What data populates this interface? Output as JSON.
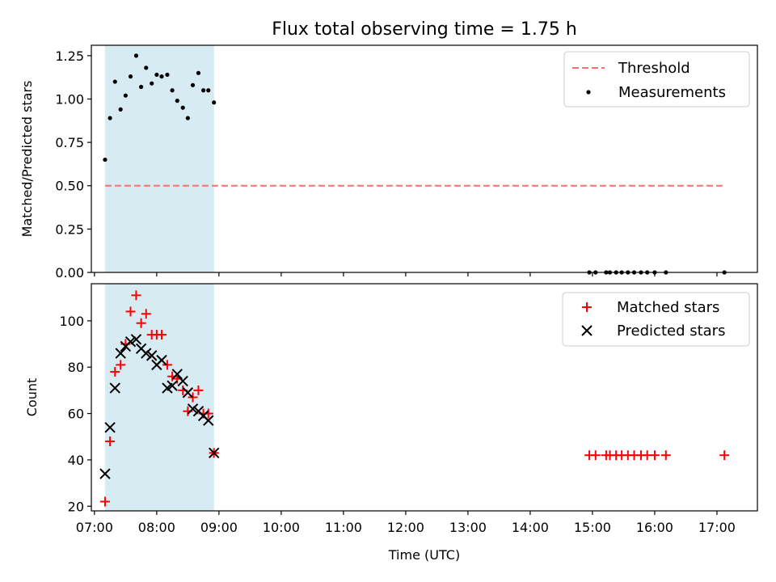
{
  "chart_data": {
    "type": "scatter",
    "title": "Flux total observing time = 1.75 h",
    "xlabel": "Time (UTC)",
    "x_ticks": [
      "07:00",
      "08:00",
      "09:00",
      "10:00",
      "11:00",
      "12:00",
      "13:00",
      "14:00",
      "15:00",
      "16:00",
      "17:00"
    ],
    "xlim_hours": [
      6.95,
      17.65
    ],
    "shaded_span_hours": [
      7.17,
      8.92
    ],
    "shade_color": "#add8e6",
    "top": {
      "ylabel": "Matched/Predicted stars",
      "ylim": [
        0,
        1.31
      ],
      "y_ticks": [
        "0.00",
        "0.25",
        "0.50",
        "0.75",
        "1.00",
        "1.25"
      ],
      "threshold": {
        "name": "Threshold",
        "value": 0.5,
        "x_range_hours": [
          7.17,
          17.12
        ],
        "color": "#ff7070"
      },
      "measurements": {
        "name": "Measurements",
        "color": "#000000",
        "x": [
          7.17,
          7.25,
          7.33,
          7.42,
          7.5,
          7.58,
          7.67,
          7.75,
          7.83,
          7.92,
          8.0,
          8.08,
          8.17,
          8.25,
          8.33,
          8.42,
          8.5,
          8.58,
          8.67,
          8.75,
          8.83,
          8.92,
          14.95,
          15.05,
          15.22,
          15.28,
          15.38,
          15.47,
          15.57,
          15.67,
          15.78,
          15.88,
          16.0,
          16.18,
          17.12
        ],
        "y": [
          0.65,
          0.89,
          1.1,
          0.94,
          1.02,
          1.13,
          1.25,
          1.07,
          1.18,
          1.09,
          1.14,
          1.13,
          1.14,
          1.05,
          0.99,
          0.95,
          0.89,
          1.08,
          1.15,
          1.05,
          1.05,
          0.98,
          0,
          0,
          0,
          0,
          0,
          0,
          0,
          0,
          0,
          0,
          0,
          0,
          0
        ]
      }
    },
    "bottom": {
      "ylabel": "Count",
      "ylim": [
        18,
        116
      ],
      "y_ticks": [
        "20",
        "40",
        "60",
        "80",
        "100"
      ],
      "matched": {
        "name": "Matched stars",
        "color": "#ff0000",
        "x": [
          7.17,
          7.25,
          7.33,
          7.42,
          7.5,
          7.58,
          7.67,
          7.75,
          7.83,
          7.92,
          8.0,
          8.08,
          8.17,
          8.25,
          8.33,
          8.42,
          8.5,
          8.58,
          8.67,
          8.75,
          8.83,
          8.92,
          14.95,
          15.05,
          15.22,
          15.28,
          15.38,
          15.47,
          15.57,
          15.67,
          15.78,
          15.88,
          16.0,
          16.18,
          17.12
        ],
        "y": [
          22,
          48,
          78,
          81,
          90,
          104,
          111,
          99,
          103,
          94,
          94,
          94,
          81,
          76,
          75,
          70,
          61,
          67,
          70,
          60,
          60,
          43,
          42,
          42,
          42,
          42,
          42,
          42,
          42,
          42,
          42,
          42,
          42,
          42,
          42
        ]
      },
      "predicted": {
        "name": "Predicted stars",
        "color": "#000000",
        "x": [
          7.17,
          7.25,
          7.33,
          7.42,
          7.5,
          7.58,
          7.67,
          7.75,
          7.83,
          7.92,
          8.0,
          8.08,
          8.17,
          8.25,
          8.33,
          8.42,
          8.5,
          8.58,
          8.67,
          8.75,
          8.83,
          8.92
        ],
        "y": [
          34,
          54,
          71,
          86,
          89,
          91,
          92,
          88,
          86,
          85,
          81,
          83,
          71,
          72,
          77,
          74,
          69,
          62,
          61,
          59,
          57,
          43
        ]
      }
    }
  }
}
